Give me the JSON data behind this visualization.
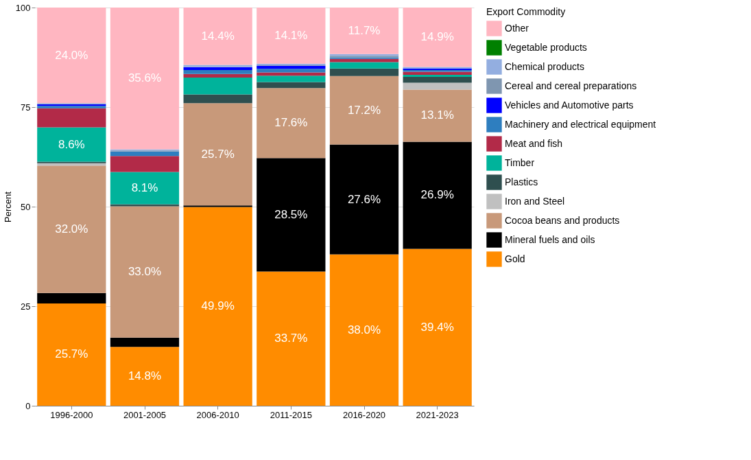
{
  "chart_data": {
    "type": "bar",
    "stacked": true,
    "ylabel": "Percent",
    "legend_title": "Export Commodity",
    "legend": "right",
    "grid": "y",
    "ylim": [
      0,
      100
    ],
    "yticks": [
      0,
      25,
      50,
      75,
      100
    ],
    "categories": [
      "1996-2000",
      "2001-2005",
      "2006-2010",
      "2011-2015",
      "2016-2020",
      "2021-2023"
    ],
    "series": [
      {
        "name": "Gold",
        "color": "#ff8c00",
        "values": [
          25.7,
          14.8,
          49.9,
          33.7,
          38.0,
          39.4
        ],
        "value_labels": [
          "25.7%",
          "14.8%",
          "49.9%",
          "33.7%",
          "38.0%",
          "39.4%"
        ]
      },
      {
        "name": "Mineral fuels and oils",
        "color": "#000000",
        "values": [
          2.6,
          2.3,
          0.4,
          28.5,
          27.6,
          26.9
        ],
        "value_labels": [
          null,
          null,
          null,
          "28.5%",
          "27.6%",
          "26.9%"
        ]
      },
      {
        "name": "Cocoa beans and products",
        "color": "#c8997a",
        "values": [
          32.0,
          33.0,
          25.7,
          17.6,
          17.2,
          13.1
        ],
        "value_labels": [
          "32.0%",
          "33.0%",
          "25.7%",
          "17.6%",
          "17.2%",
          "13.1%"
        ]
      },
      {
        "name": "Iron and Steel",
        "color": "#c0c0c0",
        "values": [
          0.6,
          0,
          0,
          null,
          null,
          1.7
        ]
      },
      {
        "name": "Plastics",
        "color": "#2f4f4f",
        "values": [
          0.4,
          0.5,
          2.2,
          1.5,
          1.9,
          1.5
        ]
      },
      {
        "name": "Timber",
        "color": "#00b39b",
        "values": [
          8.6,
          8.1,
          4.2,
          1.6,
          1.6,
          0.5
        ],
        "value_labels": [
          "8.6%",
          "8.1%",
          null,
          null,
          null,
          null
        ]
      },
      {
        "name": "Meat and fish",
        "color": "#b22a48",
        "values": [
          4.8,
          4.0,
          0.9,
          0.8,
          0.8,
          0.8
        ]
      },
      {
        "name": "Machinery and electrical equipment",
        "color": "#2e7ebf",
        "values": [
          0.6,
          1.2,
          1.0,
          0.9,
          0.4,
          0.4
        ]
      },
      {
        "name": "Vehicles and Automotive parts",
        "color": "#0000ff",
        "values": [
          0.4,
          0,
          0.7,
          0.8,
          0,
          0.4
        ]
      },
      {
        "name": "Cereal and cereal preparations",
        "color": "#7f96b0",
        "values": [
          0.1,
          0.2,
          0.1,
          0.1,
          0.4,
          0
        ]
      },
      {
        "name": "Chemical products",
        "color": "#93aee0",
        "values": [
          0.2,
          0.3,
          0.5,
          0.4,
          0.4,
          0.4
        ]
      },
      {
        "name": "Vegetable products",
        "color": "#008000",
        "values": [
          0,
          0,
          0,
          0,
          0,
          0
        ]
      },
      {
        "name": "Other",
        "color": "#ffb6c1",
        "values": [
          24.0,
          35.6,
          14.4,
          14.1,
          11.7,
          14.9
        ],
        "value_labels": [
          "24.0%",
          "35.6%",
          "14.4%",
          "14.1%",
          "11.7%",
          "14.9%"
        ]
      }
    ]
  }
}
